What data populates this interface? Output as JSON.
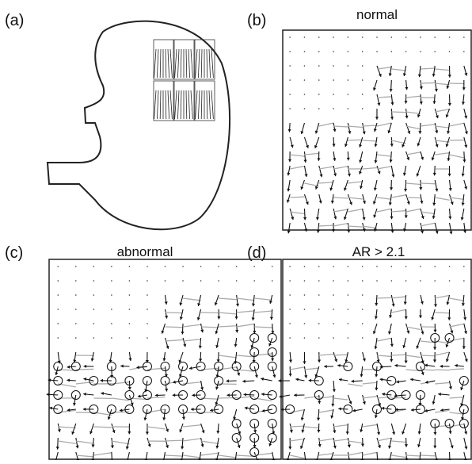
{
  "panels": [
    {
      "label": "(a)"
    },
    {
      "label": "(b)",
      "title": "normal"
    },
    {
      "label": "(c)",
      "title": "abnormal"
    },
    {
      "label": "(d)",
      "title": "AR > 2.1"
    }
  ]
}
